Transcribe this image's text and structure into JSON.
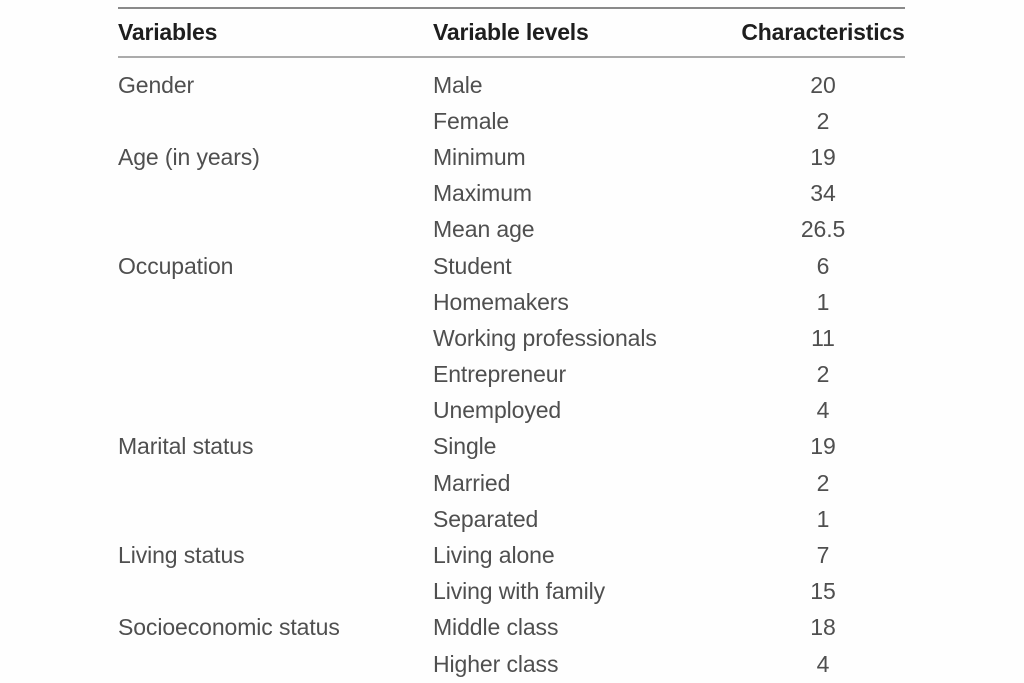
{
  "table": {
    "headers": {
      "variables": "Variables",
      "levels": "Variable levels",
      "characteristics": "Characteristics"
    },
    "rows": [
      {
        "variable": "Gender",
        "level": "Male",
        "value": "20"
      },
      {
        "variable": "",
        "level": "Female",
        "value": "2"
      },
      {
        "variable": "Age (in years)",
        "level": "Minimum",
        "value": "19"
      },
      {
        "variable": "",
        "level": "Maximum",
        "value": "34"
      },
      {
        "variable": "",
        "level": "Mean age",
        "value": "26.5"
      },
      {
        "variable": "Occupation",
        "level": "Student",
        "value": "6"
      },
      {
        "variable": "",
        "level": "Homemakers",
        "value": "1"
      },
      {
        "variable": "",
        "level": "Working professionals",
        "value": "11"
      },
      {
        "variable": "",
        "level": "Entrepreneur",
        "value": "2"
      },
      {
        "variable": "",
        "level": "Unemployed",
        "value": "4"
      },
      {
        "variable": "Marital status",
        "level": "Single",
        "value": "19"
      },
      {
        "variable": "",
        "level": "Married",
        "value": "2"
      },
      {
        "variable": "",
        "level": "Separated",
        "value": "1"
      },
      {
        "variable": "Living status",
        "level": "Living alone",
        "value": "7"
      },
      {
        "variable": "",
        "level": "Living with family",
        "value": "15"
      },
      {
        "variable": "Socioeconomic status",
        "level": "Middle class",
        "value": "18"
      },
      {
        "variable": "",
        "level": "Higher class",
        "value": "4"
      }
    ],
    "colors": {
      "background": "#ffffff",
      "header_text": "#1e1e1e",
      "body_text": "#4f4f4f",
      "top_rule": "#8a8a8a",
      "header_rule": "#ababab"
    }
  }
}
